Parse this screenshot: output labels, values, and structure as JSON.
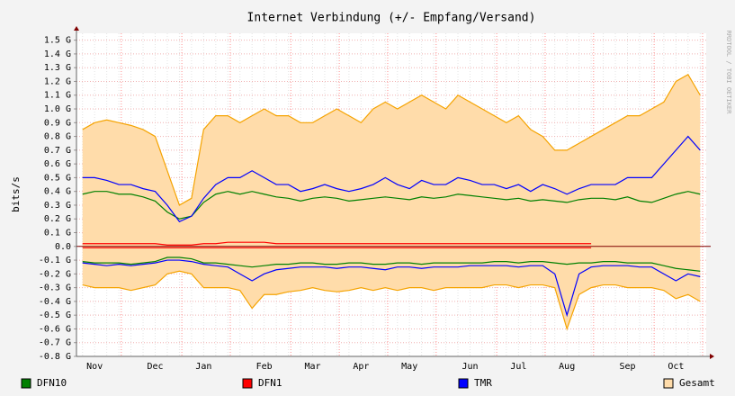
{
  "chart_data": {
    "type": "line",
    "title": "Internet Verbindung (+/- Empfang/Versand)",
    "y_label": "bits/s",
    "side_text": "RRDTOOL / TOBI OETIKER",
    "legend": "bottom",
    "grid": true,
    "categories": [
      null,
      "Nov",
      null,
      null,
      null,
      null,
      "Dec",
      null,
      null,
      null,
      "Jan",
      null,
      null,
      null,
      null,
      "Feb",
      null,
      null,
      null,
      "Mar",
      null,
      null,
      null,
      "Apr",
      null,
      null,
      null,
      "May",
      null,
      null,
      null,
      null,
      "Jun",
      null,
      null,
      null,
      "Jul",
      null,
      null,
      null,
      "Aug",
      null,
      null,
      null,
      null,
      "Sep",
      null,
      null,
      null,
      "Oct",
      null,
      null
    ],
    "ylim": [
      -0.8,
      1.55
    ],
    "yticks": [
      {
        "value": 1.5,
        "label": "1.5 G"
      },
      {
        "value": 1.4,
        "label": "1.4 G"
      },
      {
        "value": 1.3,
        "label": "1.3 G"
      },
      {
        "value": 1.2,
        "label": "1.2 G"
      },
      {
        "value": 1.1,
        "label": "1.1 G"
      },
      {
        "value": 1.0,
        "label": "1.0 G"
      },
      {
        "value": 0.9,
        "label": "0.9 G"
      },
      {
        "value": 0.8,
        "label": "0.8 G"
      },
      {
        "value": 0.7,
        "label": "0.7 G"
      },
      {
        "value": 0.6,
        "label": "0.6 G"
      },
      {
        "value": 0.5,
        "label": "0.5 G"
      },
      {
        "value": 0.4,
        "label": "0.4 G"
      },
      {
        "value": 0.3,
        "label": "0.3 G"
      },
      {
        "value": 0.2,
        "label": "0.2 G"
      },
      {
        "value": 0.1,
        "label": "0.1 G"
      },
      {
        "value": 0,
        "label": "0.0"
      },
      {
        "value": -0.1,
        "label": "-0.1 G"
      },
      {
        "value": -0.2,
        "label": "-0.2 G"
      },
      {
        "value": -0.3,
        "label": "-0.3 G"
      },
      {
        "value": -0.4,
        "label": "-0.4 G"
      },
      {
        "value": -0.5,
        "label": "-0.5 G"
      },
      {
        "value": -0.6,
        "label": "-0.6 G"
      },
      {
        "value": -0.7,
        "label": "-0.7 G"
      },
      {
        "value": -0.8,
        "label": "-0.8 G"
      }
    ],
    "series": [
      {
        "name": "DFN10",
        "color": "#008000",
        "values": [
          0.38,
          0.4,
          0.4,
          0.38,
          0.38,
          0.36,
          0.33,
          0.25,
          0.2,
          0.22,
          0.32,
          0.38,
          0.4,
          0.38,
          0.4,
          0.38,
          0.36,
          0.35,
          0.33,
          0.35,
          0.36,
          0.35,
          0.33,
          0.34,
          0.35,
          0.36,
          0.35,
          0.34,
          0.36,
          0.35,
          0.36,
          0.38,
          0.37,
          0.36,
          0.35,
          0.34,
          0.35,
          0.33,
          0.34,
          0.33,
          0.32,
          0.34,
          0.35,
          0.35,
          0.34,
          0.36,
          0.33,
          0.32,
          0.35,
          0.38,
          0.4,
          0.38
        ],
        "negative_values": [
          -0.11,
          -0.12,
          -0.12,
          -0.12,
          -0.13,
          -0.12,
          -0.11,
          -0.08,
          -0.08,
          -0.09,
          -0.12,
          -0.12,
          -0.13,
          -0.14,
          -0.15,
          -0.14,
          -0.13,
          -0.13,
          -0.12,
          -0.12,
          -0.13,
          -0.13,
          -0.12,
          -0.12,
          -0.13,
          -0.13,
          -0.12,
          -0.12,
          -0.13,
          -0.12,
          -0.12,
          -0.12,
          -0.12,
          -0.12,
          -0.11,
          -0.11,
          -0.12,
          -0.11,
          -0.11,
          -0.12,
          -0.13,
          -0.12,
          -0.12,
          -0.11,
          -0.11,
          -0.12,
          -0.12,
          -0.12,
          -0.14,
          -0.16,
          -0.17,
          -0.18
        ]
      },
      {
        "name": "DFN1",
        "color": "#ff0000",
        "values": [
          0.02,
          0.02,
          0.02,
          0.02,
          0.02,
          0.02,
          0.02,
          0.01,
          0.01,
          0.01,
          0.02,
          0.02,
          0.03,
          0.03,
          0.03,
          0.03,
          0.02,
          0.02,
          0.02,
          0.02,
          0.02,
          0.02,
          0.02,
          0.02,
          0.02,
          0.02,
          0.02,
          0.02,
          0.02,
          0.02,
          0.02,
          0.02,
          0.02,
          0.02,
          0.02,
          0.02,
          0.02,
          0.02,
          0.02,
          0.02,
          0.02,
          0.02,
          0.02,
          null,
          null,
          null,
          null,
          null,
          null,
          null,
          null,
          null
        ],
        "negative_values": [
          -0.01,
          -0.01,
          -0.01,
          -0.01,
          -0.01,
          -0.01,
          -0.01,
          -0.01,
          -0.01,
          -0.01,
          -0.01,
          -0.01,
          -0.01,
          -0.01,
          -0.01,
          -0.01,
          -0.01,
          -0.01,
          -0.01,
          -0.01,
          -0.01,
          -0.01,
          -0.01,
          -0.01,
          -0.01,
          -0.01,
          -0.01,
          -0.01,
          -0.01,
          -0.01,
          -0.01,
          -0.01,
          -0.01,
          -0.01,
          -0.01,
          -0.01,
          -0.01,
          -0.01,
          -0.01,
          -0.01,
          -0.01,
          -0.01,
          -0.01,
          null,
          null,
          null,
          null,
          null,
          null,
          null,
          null,
          null
        ]
      },
      {
        "name": "TMR",
        "color": "#0000ff",
        "values": [
          0.5,
          0.5,
          0.48,
          0.45,
          0.45,
          0.42,
          0.4,
          0.3,
          0.18,
          0.22,
          0.35,
          0.45,
          0.5,
          0.5,
          0.55,
          0.5,
          0.45,
          0.45,
          0.4,
          0.42,
          0.45,
          0.42,
          0.4,
          0.42,
          0.45,
          0.5,
          0.45,
          0.42,
          0.48,
          0.45,
          0.45,
          0.5,
          0.48,
          0.45,
          0.45,
          0.42,
          0.45,
          0.4,
          0.45,
          0.42,
          0.38,
          0.42,
          0.45,
          0.45,
          0.45,
          0.5,
          0.5,
          0.5,
          0.6,
          0.7,
          0.8,
          0.7
        ],
        "negative_values": [
          -0.12,
          -0.13,
          -0.14,
          -0.13,
          -0.14,
          -0.13,
          -0.12,
          -0.1,
          -0.1,
          -0.11,
          -0.13,
          -0.14,
          -0.15,
          -0.2,
          -0.25,
          -0.2,
          -0.17,
          -0.16,
          -0.15,
          -0.15,
          -0.15,
          -0.16,
          -0.15,
          -0.15,
          -0.16,
          -0.17,
          -0.15,
          -0.15,
          -0.16,
          -0.15,
          -0.15,
          -0.15,
          -0.14,
          -0.14,
          -0.14,
          -0.14,
          -0.15,
          -0.14,
          -0.14,
          -0.2,
          -0.5,
          -0.2,
          -0.15,
          -0.14,
          -0.14,
          -0.14,
          -0.15,
          -0.15,
          -0.2,
          -0.25,
          -0.2,
          -0.22
        ]
      },
      {
        "name": "Gesamt",
        "color": "#f5a300",
        "area": true,
        "area_color": "#ffdcaa",
        "values": [
          0.85,
          0.9,
          0.92,
          0.9,
          0.88,
          0.85,
          0.8,
          0.55,
          0.3,
          0.35,
          0.85,
          0.95,
          0.95,
          0.9,
          0.95,
          1.0,
          0.95,
          0.95,
          0.9,
          0.9,
          0.95,
          1.0,
          0.95,
          0.9,
          1.0,
          1.05,
          1.0,
          1.05,
          1.1,
          1.05,
          1.0,
          1.1,
          1.05,
          1.0,
          0.95,
          0.9,
          0.95,
          0.85,
          0.8,
          0.7,
          0.7,
          0.75,
          0.8,
          0.85,
          0.9,
          0.95,
          0.95,
          1.0,
          1.05,
          1.2,
          1.25,
          1.1
        ],
        "negative_values": [
          -0.28,
          -0.3,
          -0.3,
          -0.3,
          -0.32,
          -0.3,
          -0.28,
          -0.2,
          -0.18,
          -0.2,
          -0.3,
          -0.3,
          -0.3,
          -0.32,
          -0.45,
          -0.35,
          -0.35,
          -0.33,
          -0.32,
          -0.3,
          -0.32,
          -0.33,
          -0.32,
          -0.3,
          -0.32,
          -0.3,
          -0.32,
          -0.3,
          -0.3,
          -0.32,
          -0.3,
          -0.3,
          -0.3,
          -0.3,
          -0.28,
          -0.28,
          -0.3,
          -0.28,
          -0.28,
          -0.3,
          -0.6,
          -0.35,
          -0.3,
          -0.28,
          -0.28,
          -0.3,
          -0.3,
          -0.3,
          -0.32,
          -0.38,
          -0.35,
          -0.4
        ]
      }
    ]
  }
}
